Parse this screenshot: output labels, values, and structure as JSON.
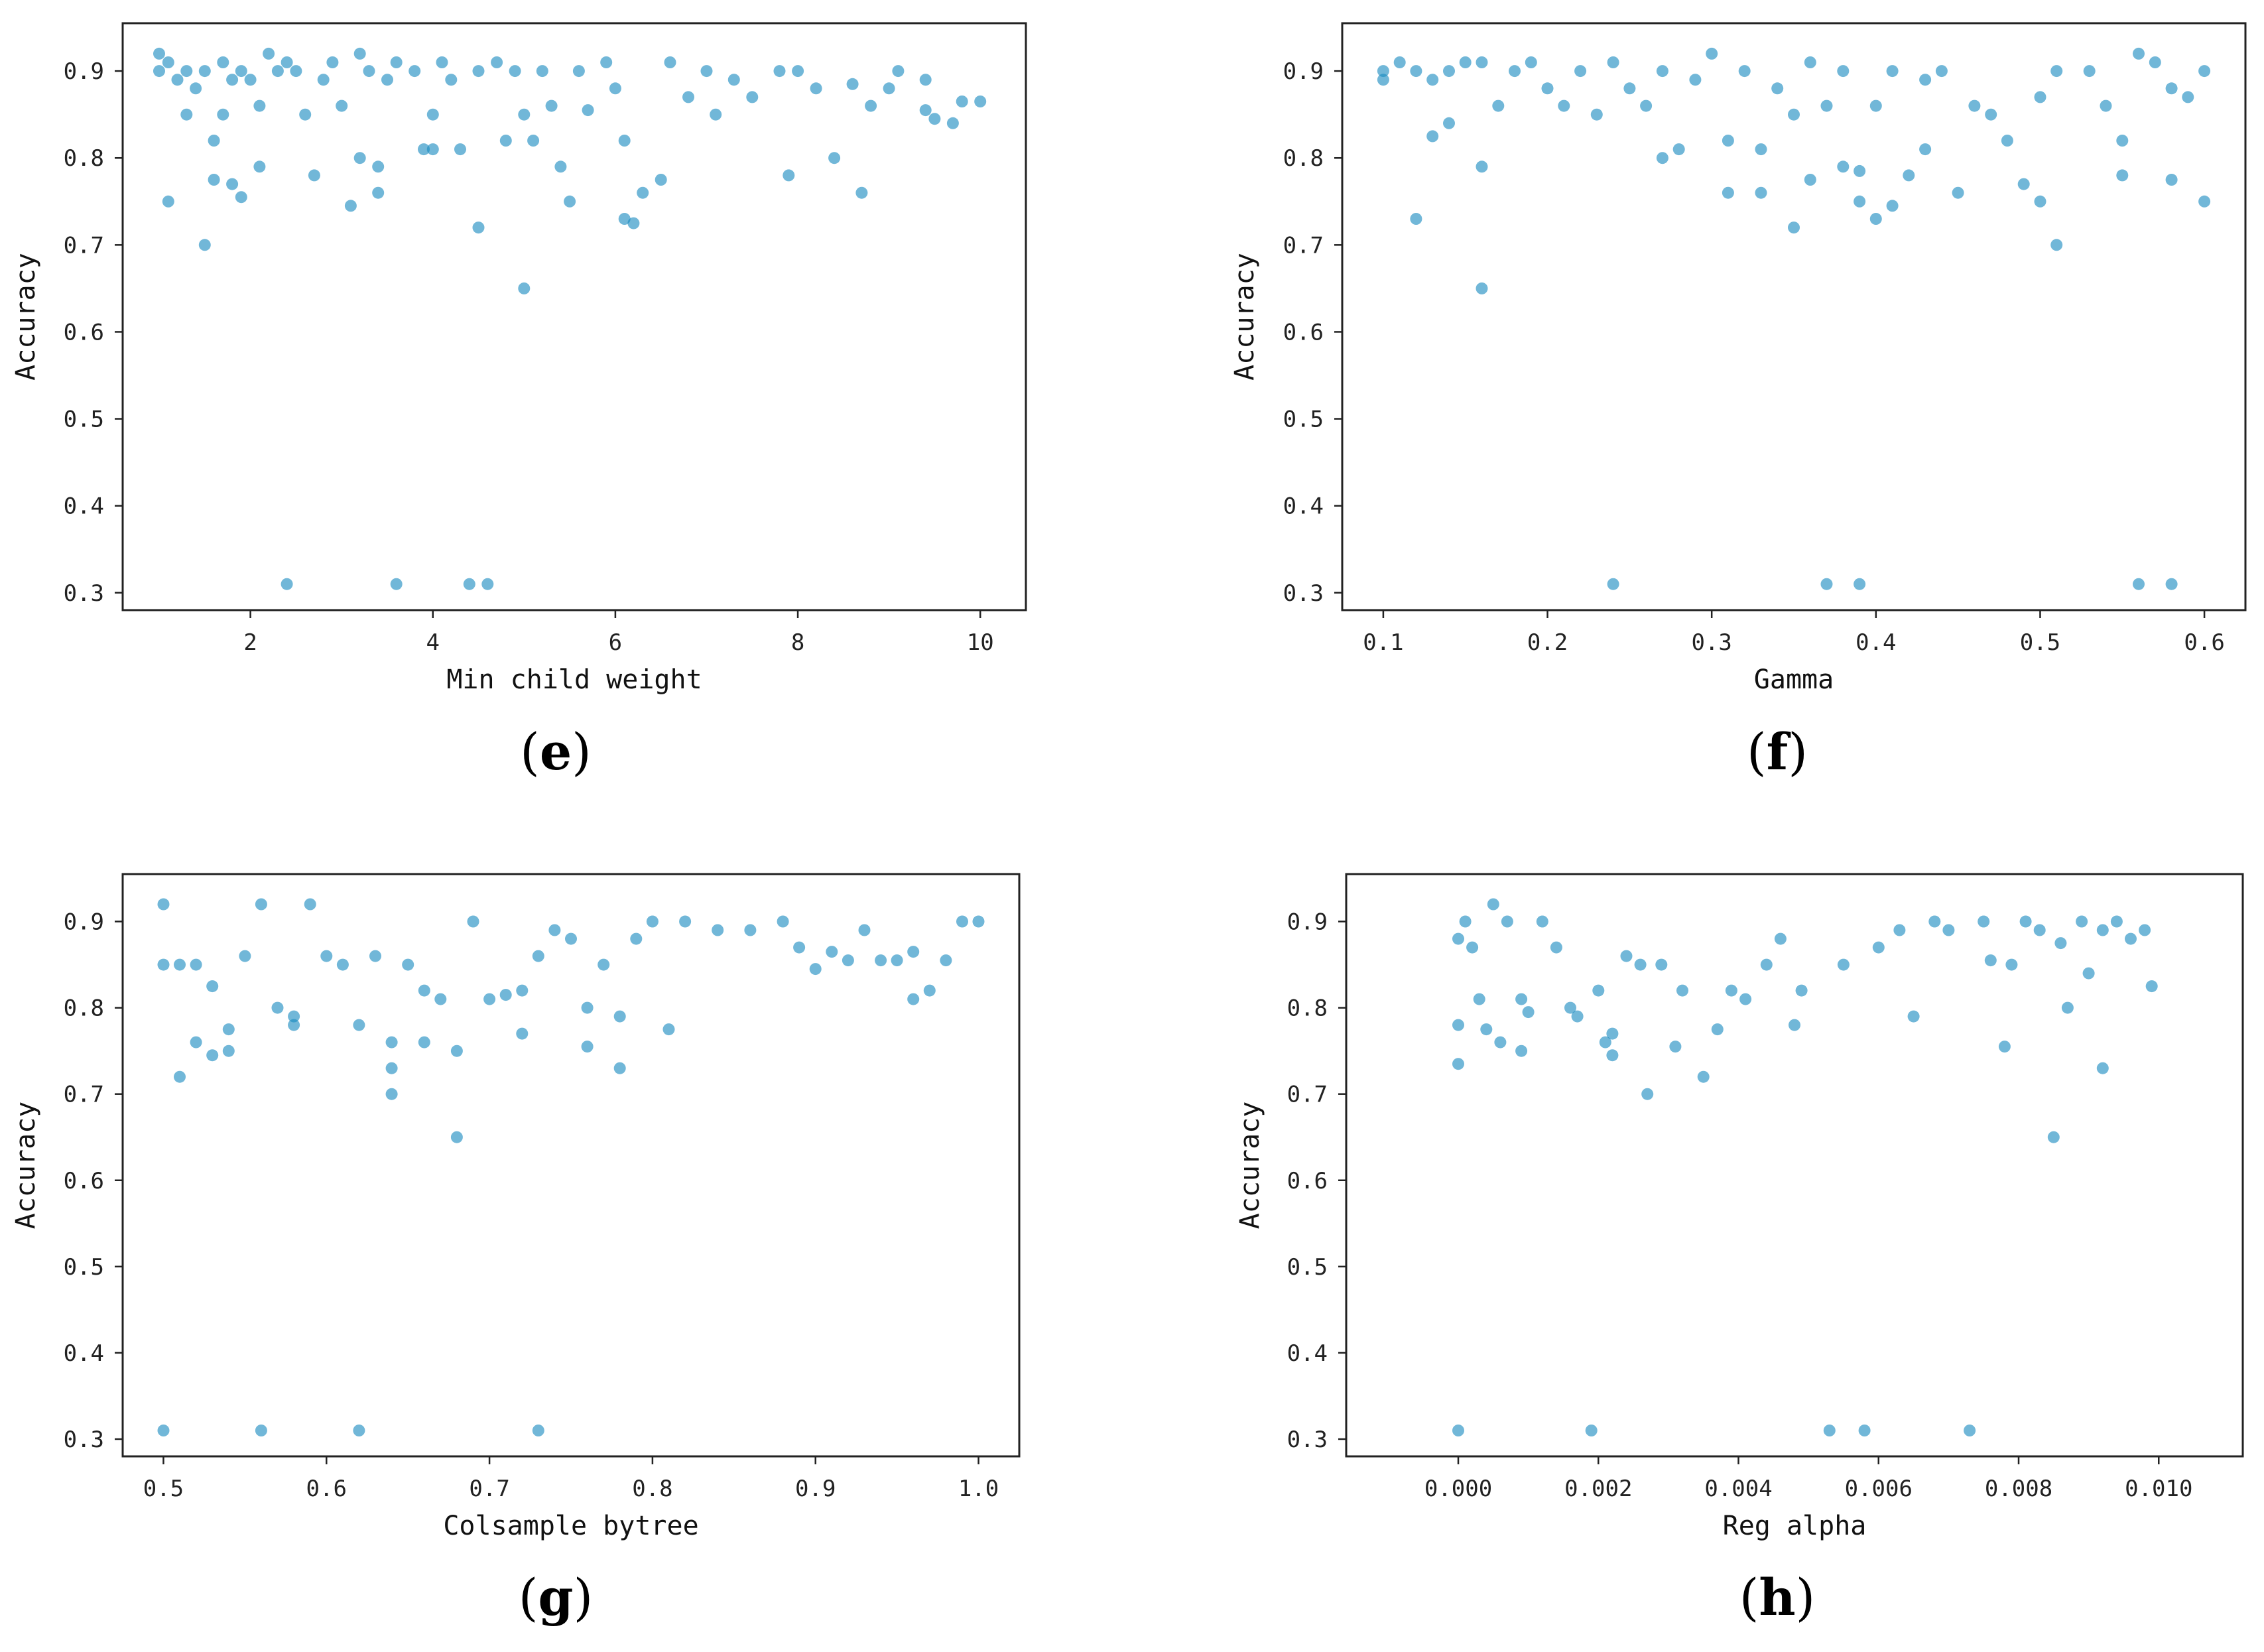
{
  "colors": {
    "point": "#1a8ac0",
    "axis": "#222222",
    "background": "#ffffff"
  },
  "chart_data": [
    {
      "type": "scatter",
      "panel_label": "(e)",
      "panel_letter": "e",
      "xlabel": "Min child weight",
      "ylabel": "Accuracy",
      "xlim": [
        0.6,
        10.5
      ],
      "ylim": [
        0.28,
        0.955
      ],
      "xticks": [
        2,
        4,
        6,
        8,
        10
      ],
      "xtick_labels": [
        "2",
        "4",
        "6",
        "8",
        "10"
      ],
      "yticks": [
        0.3,
        0.4,
        0.5,
        0.6,
        0.7,
        0.8,
        0.9
      ],
      "ytick_labels": [
        "0.3",
        "0.4",
        "0.5",
        "0.6",
        "0.7",
        "0.8",
        "0.9"
      ],
      "grid": false,
      "points": [
        [
          1.0,
          0.9
        ],
        [
          1.0,
          0.92
        ],
        [
          1.1,
          0.91
        ],
        [
          1.1,
          0.75
        ],
        [
          1.2,
          0.89
        ],
        [
          1.3,
          0.9
        ],
        [
          1.3,
          0.85
        ],
        [
          1.4,
          0.88
        ],
        [
          1.5,
          0.9
        ],
        [
          1.5,
          0.7
        ],
        [
          1.6,
          0.82
        ],
        [
          1.6,
          0.775
        ],
        [
          1.7,
          0.91
        ],
        [
          1.7,
          0.85
        ],
        [
          1.8,
          0.89
        ],
        [
          1.8,
          0.77
        ],
        [
          1.9,
          0.755
        ],
        [
          1.9,
          0.9
        ],
        [
          2.0,
          0.89
        ],
        [
          2.1,
          0.86
        ],
        [
          2.1,
          0.79
        ],
        [
          2.2,
          0.92
        ],
        [
          2.3,
          0.9
        ],
        [
          2.4,
          0.31
        ],
        [
          2.4,
          0.91
        ],
        [
          2.5,
          0.9
        ],
        [
          2.6,
          0.85
        ],
        [
          2.7,
          0.78
        ],
        [
          2.8,
          0.89
        ],
        [
          2.9,
          0.91
        ],
        [
          3.0,
          0.86
        ],
        [
          3.1,
          0.745
        ],
        [
          3.2,
          0.92
        ],
        [
          3.2,
          0.8
        ],
        [
          3.3,
          0.9
        ],
        [
          3.4,
          0.76
        ],
        [
          3.4,
          0.79
        ],
        [
          3.5,
          0.89
        ],
        [
          3.6,
          0.31
        ],
        [
          3.6,
          0.91
        ],
        [
          3.8,
          0.9
        ],
        [
          3.9,
          0.81
        ],
        [
          4.0,
          0.85
        ],
        [
          4.0,
          0.81
        ],
        [
          4.1,
          0.91
        ],
        [
          4.2,
          0.89
        ],
        [
          4.3,
          0.81
        ],
        [
          4.4,
          0.31
        ],
        [
          4.5,
          0.72
        ],
        [
          4.5,
          0.9
        ],
        [
          4.6,
          0.31
        ],
        [
          4.7,
          0.91
        ],
        [
          4.8,
          0.82
        ],
        [
          4.9,
          0.9
        ],
        [
          5.0,
          0.65
        ],
        [
          5.0,
          0.85
        ],
        [
          5.1,
          0.82
        ],
        [
          5.2,
          0.9
        ],
        [
          5.3,
          0.86
        ],
        [
          5.4,
          0.79
        ],
        [
          5.5,
          0.75
        ],
        [
          5.6,
          0.9
        ],
        [
          5.7,
          0.855
        ],
        [
          5.9,
          0.91
        ],
        [
          6.0,
          0.88
        ],
        [
          6.1,
          0.73
        ],
        [
          6.1,
          0.82
        ],
        [
          6.2,
          0.725
        ],
        [
          6.3,
          0.76
        ],
        [
          6.5,
          0.775
        ],
        [
          6.6,
          0.91
        ],
        [
          6.8,
          0.87
        ],
        [
          7.0,
          0.9
        ],
        [
          7.1,
          0.85
        ],
        [
          7.3,
          0.89
        ],
        [
          7.5,
          0.87
        ],
        [
          7.8,
          0.9
        ],
        [
          7.9,
          0.78
        ],
        [
          8.0,
          0.9
        ],
        [
          8.2,
          0.88
        ],
        [
          8.4,
          0.8
        ],
        [
          8.6,
          0.885
        ],
        [
          8.7,
          0.76
        ],
        [
          8.8,
          0.86
        ],
        [
          9.0,
          0.88
        ],
        [
          9.1,
          0.9
        ],
        [
          9.4,
          0.89
        ],
        [
          9.4,
          0.855
        ],
        [
          9.5,
          0.845
        ],
        [
          9.7,
          0.84
        ],
        [
          9.8,
          0.865
        ],
        [
          10.0,
          0.865
        ]
      ]
    },
    {
      "type": "scatter",
      "panel_label": "(f)",
      "panel_letter": "f",
      "xlabel": "Gamma",
      "ylabel": "Accuracy",
      "xlim": [
        0.075,
        0.625
      ],
      "ylim": [
        0.28,
        0.955
      ],
      "xticks": [
        0.1,
        0.2,
        0.3,
        0.4,
        0.5,
        0.6
      ],
      "xtick_labels": [
        "0.1",
        "0.2",
        "0.3",
        "0.4",
        "0.5",
        "0.6"
      ],
      "yticks": [
        0.3,
        0.4,
        0.5,
        0.6,
        0.7,
        0.8,
        0.9
      ],
      "ytick_labels": [
        "0.3",
        "0.4",
        "0.5",
        "0.6",
        "0.7",
        "0.8",
        "0.9"
      ],
      "grid": false,
      "points": [
        [
          0.1,
          0.9
        ],
        [
          0.1,
          0.89
        ],
        [
          0.11,
          0.91
        ],
        [
          0.12,
          0.73
        ],
        [
          0.12,
          0.9
        ],
        [
          0.13,
          0.825
        ],
        [
          0.13,
          0.89
        ],
        [
          0.14,
          0.84
        ],
        [
          0.14,
          0.9
        ],
        [
          0.15,
          0.91
        ],
        [
          0.16,
          0.79
        ],
        [
          0.16,
          0.65
        ],
        [
          0.16,
          0.91
        ],
        [
          0.17,
          0.86
        ],
        [
          0.18,
          0.9
        ],
        [
          0.19,
          0.91
        ],
        [
          0.2,
          0.88
        ],
        [
          0.21,
          0.86
        ],
        [
          0.22,
          0.9
        ],
        [
          0.23,
          0.85
        ],
        [
          0.24,
          0.31
        ],
        [
          0.24,
          0.91
        ],
        [
          0.25,
          0.88
        ],
        [
          0.26,
          0.86
        ],
        [
          0.27,
          0.8
        ],
        [
          0.27,
          0.9
        ],
        [
          0.28,
          0.81
        ],
        [
          0.29,
          0.89
        ],
        [
          0.3,
          0.92
        ],
        [
          0.31,
          0.76
        ],
        [
          0.31,
          0.82
        ],
        [
          0.32,
          0.9
        ],
        [
          0.33,
          0.76
        ],
        [
          0.33,
          0.81
        ],
        [
          0.34,
          0.88
        ],
        [
          0.35,
          0.72
        ],
        [
          0.35,
          0.85
        ],
        [
          0.36,
          0.775
        ],
        [
          0.36,
          0.91
        ],
        [
          0.37,
          0.31
        ],
        [
          0.37,
          0.86
        ],
        [
          0.38,
          0.79
        ],
        [
          0.38,
          0.9
        ],
        [
          0.39,
          0.31
        ],
        [
          0.39,
          0.75
        ],
        [
          0.39,
          0.785
        ],
        [
          0.4,
          0.73
        ],
        [
          0.4,
          0.86
        ],
        [
          0.41,
          0.745
        ],
        [
          0.41,
          0.9
        ],
        [
          0.42,
          0.78
        ],
        [
          0.43,
          0.81
        ],
        [
          0.43,
          0.89
        ],
        [
          0.44,
          0.9
        ],
        [
          0.45,
          0.76
        ],
        [
          0.46,
          0.86
        ],
        [
          0.47,
          0.85
        ],
        [
          0.48,
          0.82
        ],
        [
          0.49,
          0.77
        ],
        [
          0.5,
          0.75
        ],
        [
          0.5,
          0.87
        ],
        [
          0.51,
          0.7
        ],
        [
          0.51,
          0.9
        ],
        [
          0.53,
          0.9
        ],
        [
          0.54,
          0.86
        ],
        [
          0.55,
          0.78
        ],
        [
          0.55,
          0.82
        ],
        [
          0.56,
          0.31
        ],
        [
          0.56,
          0.92
        ],
        [
          0.57,
          0.91
        ],
        [
          0.58,
          0.31
        ],
        [
          0.58,
          0.775
        ],
        [
          0.58,
          0.88
        ],
        [
          0.59,
          0.87
        ],
        [
          0.6,
          0.75
        ],
        [
          0.6,
          0.9
        ]
      ]
    },
    {
      "type": "scatter",
      "panel_label": "(g)",
      "panel_letter": "g",
      "xlabel": "Colsample bytree",
      "ylabel": "Accuracy",
      "xlim": [
        0.475,
        1.025
      ],
      "ylim": [
        0.28,
        0.955
      ],
      "xticks": [
        0.5,
        0.6,
        0.7,
        0.8,
        0.9,
        1.0
      ],
      "xtick_labels": [
        "0.5",
        "0.6",
        "0.7",
        "0.8",
        "0.9",
        "1.0"
      ],
      "yticks": [
        0.3,
        0.4,
        0.5,
        0.6,
        0.7,
        0.8,
        0.9
      ],
      "ytick_labels": [
        "0.3",
        "0.4",
        "0.5",
        "0.6",
        "0.7",
        "0.8",
        "0.9"
      ],
      "grid": false,
      "points": [
        [
          0.5,
          0.31
        ],
        [
          0.5,
          0.92
        ],
        [
          0.5,
          0.85
        ],
        [
          0.51,
          0.72
        ],
        [
          0.51,
          0.85
        ],
        [
          0.52,
          0.76
        ],
        [
          0.52,
          0.85
        ],
        [
          0.53,
          0.745
        ],
        [
          0.53,
          0.825
        ],
        [
          0.54,
          0.75
        ],
        [
          0.54,
          0.775
        ],
        [
          0.55,
          0.86
        ],
        [
          0.56,
          0.31
        ],
        [
          0.56,
          0.92
        ],
        [
          0.57,
          0.8
        ],
        [
          0.58,
          0.78
        ],
        [
          0.58,
          0.79
        ],
        [
          0.59,
          0.92
        ],
        [
          0.6,
          0.86
        ],
        [
          0.61,
          0.85
        ],
        [
          0.62,
          0.31
        ],
        [
          0.62,
          0.78
        ],
        [
          0.63,
          0.86
        ],
        [
          0.64,
          0.76
        ],
        [
          0.64,
          0.73
        ],
        [
          0.64,
          0.7
        ],
        [
          0.65,
          0.85
        ],
        [
          0.66,
          0.76
        ],
        [
          0.66,
          0.82
        ],
        [
          0.67,
          0.81
        ],
        [
          0.68,
          0.75
        ],
        [
          0.68,
          0.65
        ],
        [
          0.69,
          0.9
        ],
        [
          0.7,
          0.81
        ],
        [
          0.71,
          0.815
        ],
        [
          0.72,
          0.82
        ],
        [
          0.72,
          0.77
        ],
        [
          0.73,
          0.31
        ],
        [
          0.73,
          0.86
        ],
        [
          0.74,
          0.89
        ],
        [
          0.75,
          0.88
        ],
        [
          0.76,
          0.8
        ],
        [
          0.76,
          0.755
        ],
        [
          0.77,
          0.85
        ],
        [
          0.78,
          0.79
        ],
        [
          0.78,
          0.73
        ],
        [
          0.79,
          0.88
        ],
        [
          0.8,
          0.9
        ],
        [
          0.81,
          0.775
        ],
        [
          0.82,
          0.9
        ],
        [
          0.84,
          0.89
        ],
        [
          0.86,
          0.89
        ],
        [
          0.88,
          0.9
        ],
        [
          0.89,
          0.87
        ],
        [
          0.9,
          0.845
        ],
        [
          0.91,
          0.865
        ],
        [
          0.92,
          0.855
        ],
        [
          0.93,
          0.89
        ],
        [
          0.94,
          0.855
        ],
        [
          0.95,
          0.855
        ],
        [
          0.96,
          0.81
        ],
        [
          0.96,
          0.865
        ],
        [
          0.97,
          0.82
        ],
        [
          0.98,
          0.855
        ],
        [
          0.99,
          0.9
        ],
        [
          1.0,
          0.9
        ]
      ]
    },
    {
      "type": "scatter",
      "panel_label": "(h)",
      "panel_letter": "h",
      "xlabel": "Reg alpha",
      "ylabel": "Accuracy",
      "xlim": [
        -0.0016,
        0.0112
      ],
      "ylim": [
        0.28,
        0.955
      ],
      "xticks": [
        0.0,
        0.002,
        0.004,
        0.006,
        0.008,
        0.01
      ],
      "xtick_labels": [
        "0.000",
        "0.002",
        "0.004",
        "0.006",
        "0.008",
        "0.010"
      ],
      "yticks": [
        0.3,
        0.4,
        0.5,
        0.6,
        0.7,
        0.8,
        0.9
      ],
      "ytick_labels": [
        "0.3",
        "0.4",
        "0.5",
        "0.6",
        "0.7",
        "0.8",
        "0.9"
      ],
      "grid": false,
      "points": [
        [
          0.0,
          0.31
        ],
        [
          0.0,
          0.78
        ],
        [
          0.0,
          0.735
        ],
        [
          0.0,
          0.88
        ],
        [
          0.0001,
          0.9
        ],
        [
          0.0002,
          0.87
        ],
        [
          0.0003,
          0.81
        ],
        [
          0.0004,
          0.775
        ],
        [
          0.0005,
          0.92
        ],
        [
          0.0006,
          0.76
        ],
        [
          0.0007,
          0.9
        ],
        [
          0.0009,
          0.75
        ],
        [
          0.0009,
          0.81
        ],
        [
          0.001,
          0.795
        ],
        [
          0.0012,
          0.9
        ],
        [
          0.0014,
          0.87
        ],
        [
          0.0016,
          0.8
        ],
        [
          0.0017,
          0.79
        ],
        [
          0.0019,
          0.31
        ],
        [
          0.002,
          0.82
        ],
        [
          0.0021,
          0.76
        ],
        [
          0.0022,
          0.745
        ],
        [
          0.0022,
          0.77
        ],
        [
          0.0024,
          0.86
        ],
        [
          0.0026,
          0.85
        ],
        [
          0.0027,
          0.7
        ],
        [
          0.0029,
          0.85
        ],
        [
          0.0031,
          0.755
        ],
        [
          0.0032,
          0.82
        ],
        [
          0.0035,
          0.72
        ],
        [
          0.0037,
          0.775
        ],
        [
          0.0039,
          0.82
        ],
        [
          0.0041,
          0.81
        ],
        [
          0.0044,
          0.85
        ],
        [
          0.0046,
          0.88
        ],
        [
          0.0048,
          0.78
        ],
        [
          0.0049,
          0.82
        ],
        [
          0.0053,
          0.31
        ],
        [
          0.0055,
          0.85
        ],
        [
          0.0058,
          0.31
        ],
        [
          0.006,
          0.87
        ],
        [
          0.0063,
          0.89
        ],
        [
          0.0065,
          0.79
        ],
        [
          0.0068,
          0.9
        ],
        [
          0.007,
          0.89
        ],
        [
          0.0073,
          0.31
        ],
        [
          0.0075,
          0.9
        ],
        [
          0.0076,
          0.855
        ],
        [
          0.0078,
          0.755
        ],
        [
          0.0079,
          0.85
        ],
        [
          0.0081,
          0.9
        ],
        [
          0.0083,
          0.89
        ],
        [
          0.0085,
          0.65
        ],
        [
          0.0086,
          0.875
        ],
        [
          0.0087,
          0.8
        ],
        [
          0.0089,
          0.9
        ],
        [
          0.009,
          0.84
        ],
        [
          0.0092,
          0.73
        ],
        [
          0.0092,
          0.89
        ],
        [
          0.0094,
          0.9
        ],
        [
          0.0096,
          0.88
        ],
        [
          0.0098,
          0.89
        ],
        [
          0.0099,
          0.825
        ]
      ]
    }
  ]
}
